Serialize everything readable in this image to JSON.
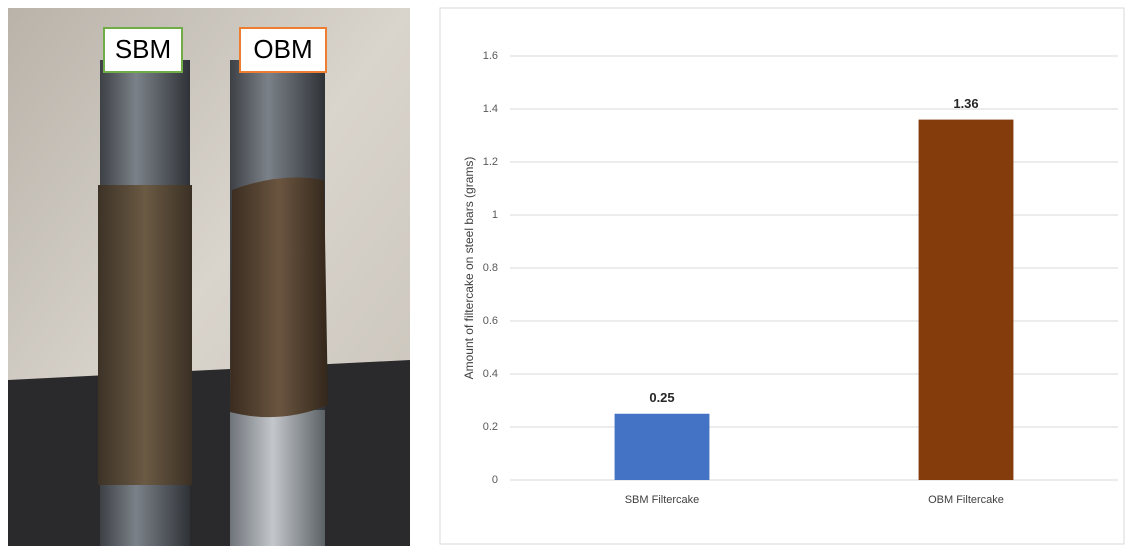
{
  "photo": {
    "labels": [
      "SBM",
      "OBM"
    ]
  },
  "chart_data": {
    "type": "bar",
    "y_label": "Amount of filtercake on steel bars (grams)",
    "categories": [
      "SBM Filtercake",
      "OBM Filtercake"
    ],
    "values": [
      0.25,
      1.36
    ],
    "colors": [
      "#4472c4",
      "#843c0c"
    ],
    "ylim": [
      0,
      1.6
    ],
    "yticks": [
      0,
      0.2,
      0.4,
      0.6,
      0.8,
      1,
      1.2,
      1.4,
      1.6
    ],
    "grid": true
  }
}
